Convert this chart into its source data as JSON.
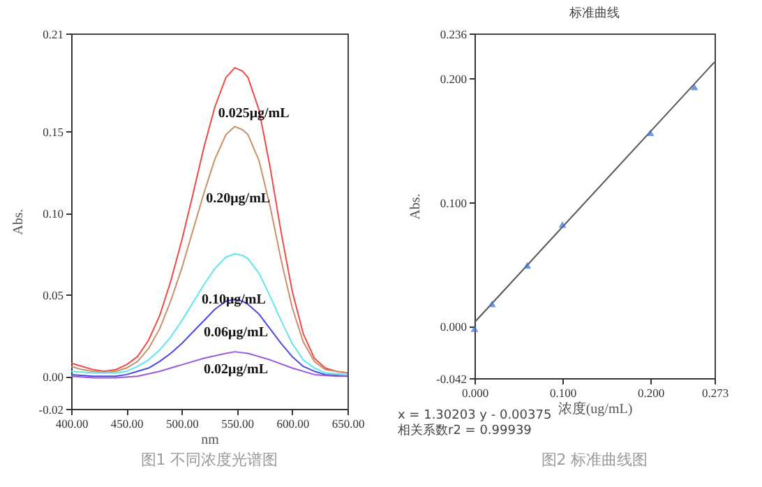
{
  "chart_data": [
    {
      "type": "line",
      "xlabel": "nm",
      "ylabel": "Abs.",
      "xlim": [
        400,
        650
      ],
      "ylim": [
        -0.02,
        0.21
      ],
      "xticks": [
        {
          "value": 400,
          "label": "400.00"
        },
        {
          "value": 450,
          "label": "450.00"
        },
        {
          "value": 500,
          "label": "500.00"
        },
        {
          "value": 550,
          "label": "550.00"
        },
        {
          "value": 600,
          "label": "600.00"
        },
        {
          "value": 650,
          "label": "650.00"
        }
      ],
      "yticks": [
        {
          "value": -0.02,
          "label": "-0.02"
        },
        {
          "value": 0,
          "label": "0.00"
        },
        {
          "value": 0.05,
          "label": "0.05"
        },
        {
          "value": 0.1,
          "label": "0.10"
        },
        {
          "value": 0.15,
          "label": "0.15"
        },
        {
          "value": 0.21,
          "label": "0.21"
        }
      ],
      "series": [
        {
          "color": "#f04848",
          "x": [
            400,
            410,
            420,
            430,
            440,
            450,
            460,
            470,
            480,
            490,
            500,
            510,
            520,
            530,
            540,
            548,
            555,
            560,
            570,
            580,
            590,
            600,
            610,
            620,
            630,
            640,
            650
          ],
          "values": [
            0.008,
            0.006,
            0.004,
            0.003,
            0.004,
            0.007,
            0.012,
            0.022,
            0.037,
            0.058,
            0.083,
            0.111,
            0.14,
            0.165,
            0.183,
            0.189,
            0.187,
            0.183,
            0.163,
            0.128,
            0.088,
            0.052,
            0.026,
            0.011,
            0.005,
            0.003,
            0.002
          ]
        },
        {
          "color": "#c8906a",
          "x": [
            400,
            410,
            420,
            430,
            440,
            450,
            460,
            470,
            480,
            490,
            500,
            510,
            520,
            530,
            540,
            548,
            555,
            560,
            570,
            580,
            590,
            600,
            610,
            620,
            630,
            640,
            650
          ],
          "values": [
            0.006,
            0.004,
            0.003,
            0.002,
            0.003,
            0.005,
            0.009,
            0.017,
            0.029,
            0.046,
            0.066,
            0.089,
            0.112,
            0.133,
            0.148,
            0.153,
            0.151,
            0.148,
            0.132,
            0.104,
            0.071,
            0.042,
            0.021,
            0.009,
            0.004,
            0.003,
            0.002
          ]
        },
        {
          "color": "#5ee6ee",
          "x": [
            400,
            420,
            440,
            450,
            460,
            470,
            480,
            490,
            500,
            510,
            520,
            530,
            540,
            548,
            555,
            560,
            570,
            580,
            590,
            600,
            610,
            620,
            630,
            650
          ],
          "values": [
            0.003,
            0.002,
            0.002,
            0.003,
            0.006,
            0.01,
            0.016,
            0.024,
            0.034,
            0.045,
            0.056,
            0.066,
            0.073,
            0.075,
            0.074,
            0.072,
            0.063,
            0.049,
            0.034,
            0.02,
            0.01,
            0.005,
            0.002,
            0.001
          ]
        },
        {
          "color": "#4a4ae0",
          "x": [
            400,
            420,
            440,
            450,
            460,
            470,
            480,
            490,
            500,
            510,
            520,
            530,
            540,
            548,
            555,
            560,
            570,
            580,
            590,
            600,
            610,
            620,
            630,
            650
          ],
          "values": [
            0.001,
            0,
            0,
            0.001,
            0.003,
            0.005,
            0.009,
            0.014,
            0.02,
            0.027,
            0.034,
            0.041,
            0.046,
            0.047,
            0.046,
            0.044,
            0.038,
            0.029,
            0.02,
            0.012,
            0.006,
            0.003,
            0.001,
            0
          ]
        },
        {
          "color": "#9a5ae0",
          "x": [
            400,
            420,
            440,
            460,
            480,
            500,
            520,
            540,
            548,
            560,
            580,
            600,
            620,
            640,
            650
          ],
          "values": [
            0,
            -0.001,
            -0.001,
            0,
            0.003,
            0.007,
            0.011,
            0.014,
            0.015,
            0.014,
            0.01,
            0.005,
            0.001,
            0,
            0
          ]
        }
      ],
      "annotations": [
        {
          "text": "0.025μg/mL",
          "x": 533,
          "y": 0.168
        },
        {
          "text": "0.20μg/mL",
          "x": 522,
          "y": 0.116
        },
        {
          "text": "0.10μg/mL",
          "x": 518,
          "y": 0.054
        },
        {
          "text": "0.06μg/mL",
          "x": 520,
          "y": 0.034
        },
        {
          "text": "0.02μg/mL",
          "x": 520,
          "y": 0.011
        },
        "图1 不同浓度光谱图"
      ]
    },
    {
      "type": "scatter",
      "title": "标准曲线",
      "xlabel": "浓度(ug/mL)",
      "ylabel": "Abs.",
      "xlim": [
        0,
        0.273
      ],
      "ylim": [
        -0.042,
        0.236
      ],
      "xticks": [
        {
          "value": 0,
          "label": "0.000"
        },
        {
          "value": 0.1,
          "label": "0.100"
        },
        {
          "value": 0.2,
          "label": "0.200"
        },
        0.273
      ],
      "yticks": [
        -0.042,
        {
          "value": 0,
          "label": "0.000"
        },
        {
          "value": 0.1,
          "label": "0.100"
        },
        {
          "value": 0.2,
          "label": "0.200"
        },
        0.236
      ],
      "series": [
        {
          "type": "line",
          "color": "#555555",
          "x": [
            0,
            0.273
          ],
          "values": [
            0.003,
            0.213
          ]
        },
        {
          "color": "#3a6fd0",
          "marker": "triangle",
          "x": [
            0,
            0.02,
            0.06,
            0.1,
            0.2,
            0.25
          ],
          "values": [
            -0.002,
            0.018,
            0.049,
            0.082,
            0.156,
            0.193
          ]
        }
      ],
      "annotations": [
        "x = 1.30203 y - 0.00375",
        "相关系数r2 = 0.99939",
        "图2 标准曲线图"
      ]
    }
  ]
}
